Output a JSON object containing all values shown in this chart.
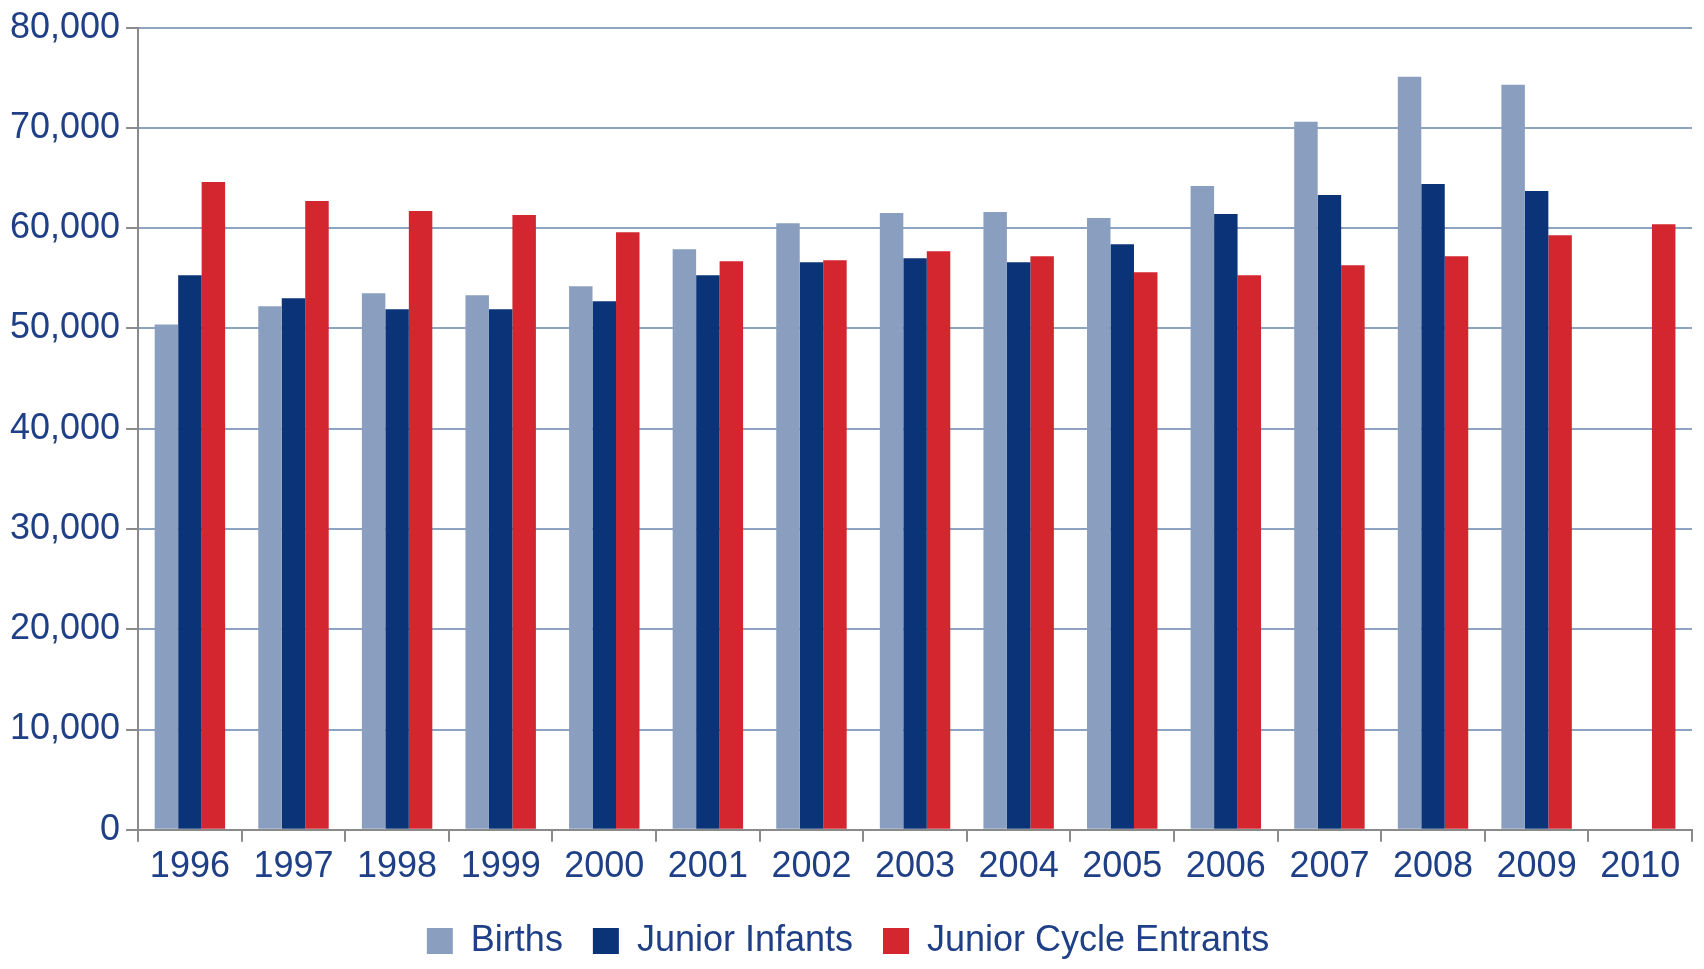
{
  "chart_data": {
    "type": "bar",
    "categories": [
      "1996",
      "1997",
      "1998",
      "1999",
      "2000",
      "2001",
      "2002",
      "2003",
      "2004",
      "2005",
      "2006",
      "2007",
      "2008",
      "2009",
      "2010"
    ],
    "series": [
      {
        "name": "Births",
        "color": "#8a9fc0",
        "values": [
          50400,
          52200,
          53500,
          53300,
          54200,
          57900,
          60500,
          61500,
          61600,
          61000,
          64200,
          70600,
          75100,
          74300,
          null
        ]
      },
      {
        "name": "Junior Infants",
        "color": "#0b3478",
        "values": [
          55300,
          53000,
          51900,
          51900,
          52700,
          55300,
          56600,
          57000,
          56600,
          58400,
          61400,
          63300,
          64400,
          63700,
          null
        ]
      },
      {
        "name": "Junior Cycle Entrants",
        "color": "#d3262e",
        "values": [
          64600,
          62700,
          61700,
          61300,
          59600,
          56700,
          56800,
          57700,
          57200,
          55600,
          55300,
          56300,
          57200,
          59300,
          60400
        ]
      }
    ],
    "ylim": [
      0,
      80000
    ],
    "yticks": [
      {
        "value": 0,
        "label": "0"
      },
      {
        "value": 10000,
        "label": "10,000"
      },
      {
        "value": 20000,
        "label": "20,000"
      },
      {
        "value": 30000,
        "label": "30,000"
      },
      {
        "value": 40000,
        "label": "40,000"
      },
      {
        "value": 50000,
        "label": "50,000"
      },
      {
        "value": 60000,
        "label": "60,000"
      },
      {
        "value": 70000,
        "label": "70,000"
      },
      {
        "value": 80000,
        "label": "80,000"
      }
    ],
    "grid": "y",
    "legend": "bottom"
  }
}
